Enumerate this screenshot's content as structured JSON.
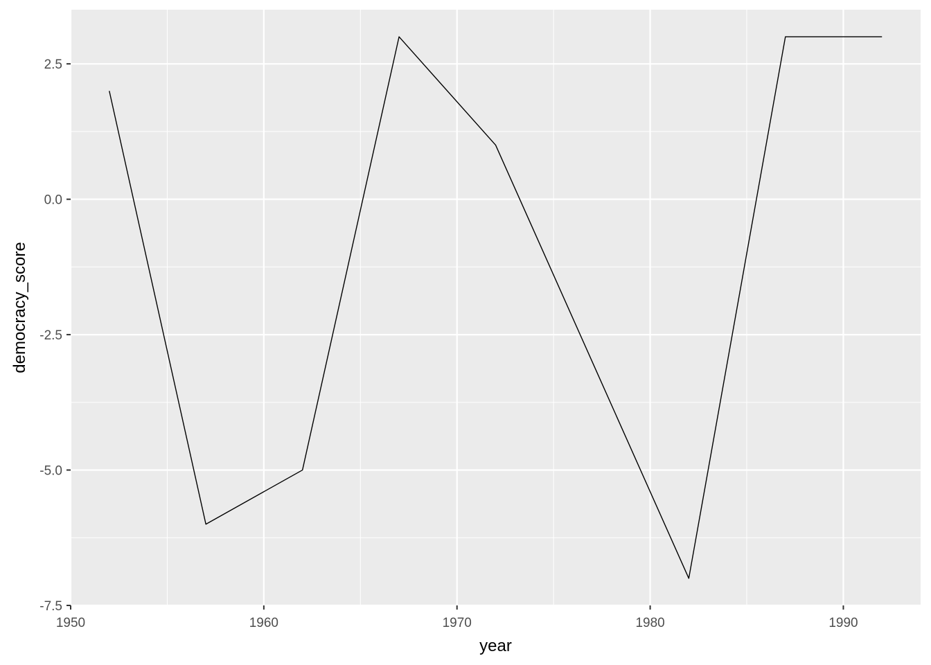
{
  "chart_data": {
    "type": "line",
    "title": "",
    "xlabel": "year",
    "ylabel": "democracy_score",
    "x": [
      1952,
      1957,
      1962,
      1967,
      1972,
      1977,
      1982,
      1987,
      1992
    ],
    "series": [
      {
        "values": [
          2,
          -6,
          -5,
          3,
          1,
          -3,
          -7,
          3,
          3
        ]
      }
    ],
    "xlim": [
      1950,
      1994
    ],
    "ylim": [
      -7.5,
      3.5
    ],
    "x_ticks": [
      1950,
      1960,
      1970,
      1980,
      1990
    ],
    "x_tick_labels": [
      "1950",
      "1960",
      "1970",
      "1980",
      "1990"
    ],
    "y_ticks": [
      -7.5,
      -5.0,
      -2.5,
      0.0,
      2.5
    ],
    "y_tick_labels": [
      "-7.5",
      "-5.0",
      "-2.5",
      "0.0",
      "2.5"
    ],
    "grid": true,
    "colors": {
      "panel_background": "#ebebeb",
      "grid": "#ffffff",
      "line": "#000000",
      "tick": "#333333",
      "tick_label": "#4d4d4d"
    }
  }
}
